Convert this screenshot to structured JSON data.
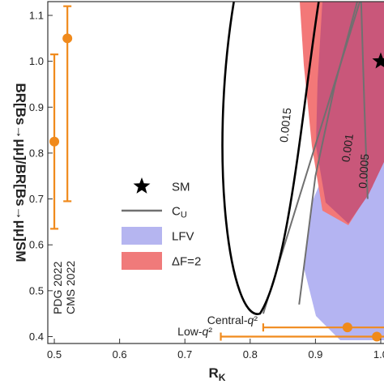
{
  "chart_data": {
    "type": "scatter",
    "xlabel": "R_K",
    "ylabel": "BR[Bs→μμ]/BR[Bs→μμ]SM",
    "xlim": [
      0.49,
      1.005
    ],
    "ylim": [
      0.385,
      1.13
    ],
    "x_ticks": [
      "0.5",
      "0.6",
      "0.7",
      "0.8",
      "0.9",
      "1.0"
    ],
    "x_tick_values": [
      0.5,
      0.6,
      0.7,
      0.8,
      0.9,
      1.0
    ],
    "y_ticks": [
      "0.4",
      "0.5",
      "0.6",
      "0.7",
      "0.8",
      "0.9",
      "1.0",
      "1.1"
    ],
    "y_tick_values": [
      0.4,
      0.5,
      0.6,
      0.7,
      0.8,
      0.9,
      1.0,
      1.1
    ],
    "sm_point": {
      "label": "SM",
      "x": 1.0,
      "y": 1.0
    },
    "measurements_y": [
      {
        "label": "PDG 2022",
        "x": 0.5,
        "y": 0.825,
        "ylow": 0.635,
        "yhigh": 1.015
      },
      {
        "label": "CMS 2022",
        "x": 0.52,
        "y": 1.05,
        "ylow": 0.695,
        "yhigh": 1.12
      }
    ],
    "measurements_x": [
      {
        "label": "Central-q²",
        "x": 0.949,
        "xlow": 0.82,
        "xhigh": 1.08,
        "y": 0.42
      },
      {
        "label": "Low-q²",
        "x": 0.994,
        "xlow": 0.755,
        "xhigh": 1.09,
        "y": 0.4
      }
    ],
    "contours": [
      {
        "label": "0.0015",
        "x": [
          0.968,
          0.82
        ],
        "y": [
          1.13,
          0.45
        ]
      },
      {
        "label": "0.001",
        "x": [
          0.964,
          0.93,
          0.9,
          0.875
        ],
        "y": [
          1.13,
          0.95,
          0.75,
          0.47
        ]
      },
      {
        "label": "0.0005",
        "x": [
          0.97,
          0.975,
          0.98
        ],
        "y": [
          1.13,
          0.9,
          0.7
        ]
      }
    ],
    "ellipse_boundary": {
      "x": [
        0.905,
        0.895,
        0.88,
        0.86,
        0.84,
        0.822,
        0.815,
        0.822,
        0.84,
        0.86,
        0.88,
        0.895
      ],
      "y": [
        1.13,
        0.95,
        0.78,
        0.63,
        0.53,
        0.475,
        0.45,
        0.475,
        0.53,
        0.63,
        0.78,
        0.95
      ]
    },
    "legend": [
      {
        "label": "SM",
        "kind": "star"
      },
      {
        "label": "C_U",
        "kind": "line"
      },
      {
        "label": "LFV",
        "kind": "patch",
        "color": "#b5b5f0"
      },
      {
        "label": "ΔF=2",
        "kind": "patch",
        "color": "#f07a7a"
      }
    ],
    "colors": {
      "measurement": "#f08a1c",
      "lfv": "#b4b4f2",
      "df2": "#f37878",
      "overlap": "#c9577a",
      "contour": "#707070"
    }
  }
}
